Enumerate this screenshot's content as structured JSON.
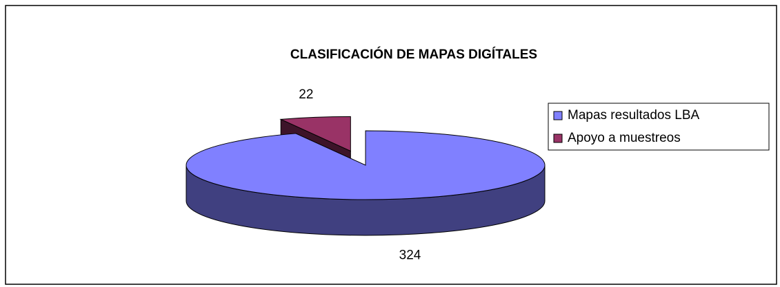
{
  "chart_data": {
    "type": "pie3d",
    "title": "CLASIFICACIÓN DE MAPAS DIGÍTALES",
    "categories": [
      "Mapas resultados LBA",
      "Apoyo a muestreos"
    ],
    "values": [
      324,
      22
    ],
    "colors": [
      "#8080ff",
      "#993366"
    ],
    "exploded": [
      false,
      true
    ],
    "legend": "right"
  }
}
